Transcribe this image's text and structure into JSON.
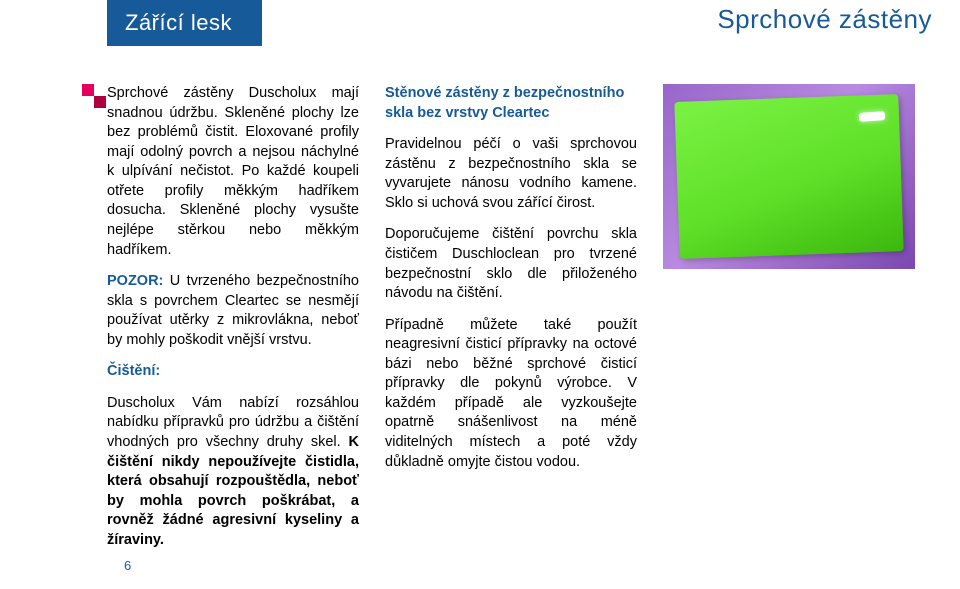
{
  "header": {
    "left_title": "Zářící lesk",
    "right_title": "Sprchové zástěny"
  },
  "col1": {
    "p1": "Sprchové zástěny Duscholux mají snadnou údržbu. Skleněné plochy lze bez problémů čistit. Eloxované profily mají odolný povrch a nejsou náchylné k ulpívání nečistot. Po každé koupeli otřete profily měkkým hadříkem dosucha. Skleněné plochy vysušte nejlépe stěrkou nebo měkkým hadříkem.",
    "pozor_label": "POZOR:",
    "p2": " U tvrzeného bezpečnostního skla s povrchem Cleartec se nesmějí používat utěrky z mikrovlákna, neboť by mohly poškodit vnější vrstvu.",
    "cist_label": "Čištění:",
    "p3a": "Duscholux Vám nabízí rozsáhlou nabídku přípravků pro údržbu a čištění vhodných pro všechny druhy skel. ",
    "p3b": "K čištění nikdy nepoužívejte čistidla, která obsahují rozpouštědla, neboť by mohla povrch poškrábat, a rovněž žádné agresivní kyseliny a žíraviny."
  },
  "col2": {
    "heading": "Stěnové zástěny z bezpečnostního skla bez vrstvy Cleartec",
    "p1": "Pravidelnou péčí o vaši sprchovou zástěnu z bezpečnostního skla se vyvarujete nánosu vodního kamene. Sklo si uchová svou zářící čirost.",
    "p2": "Doporučujeme čištění povrchu skla čističem Duschloclean pro tvrzené bezpečnostní sklo dle přiloženého návodu na čištění.",
    "p3": "Případně můžete také použít neagresivní čisticí přípravky na octové bázi nebo běžné sprchové čisticí přípravky dle pokynů výrobce. V každém případě ale vyzkoušejte opatrně snášenlivost na méně viditelných místech a poté vždy důkladně omyjte čistou vodou."
  },
  "page_number": "6",
  "colors": {
    "brand_blue": "#165a99",
    "accent_pink": "#e50060",
    "accent_dark_pink": "#ad0040"
  }
}
